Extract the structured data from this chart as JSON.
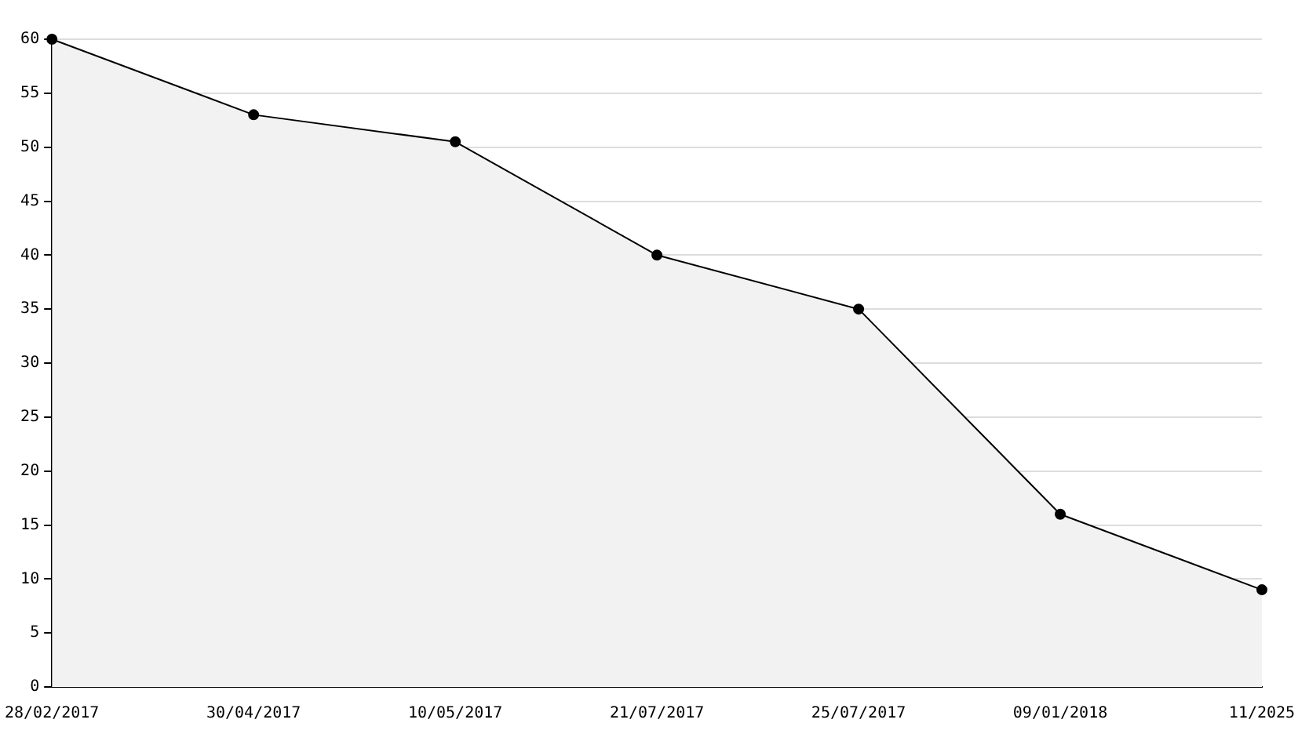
{
  "chart_data": {
    "type": "area",
    "categories": [
      "28/02/2017",
      "30/04/2017",
      "10/05/2017",
      "21/07/2017",
      "25/07/2017",
      "09/01/2018",
      "11/2025"
    ],
    "series": [
      {
        "color": "#000000",
        "values": [
          60,
          53,
          50.5,
          40,
          35,
          16,
          9
        ]
      }
    ],
    "ylim": [
      0,
      60
    ],
    "yticks": [
      0,
      5,
      10,
      15,
      20,
      25,
      30,
      35,
      40,
      45,
      50,
      55,
      60
    ],
    "grid": "y",
    "legend": false,
    "marker": "circle",
    "line_style": "solid"
  }
}
